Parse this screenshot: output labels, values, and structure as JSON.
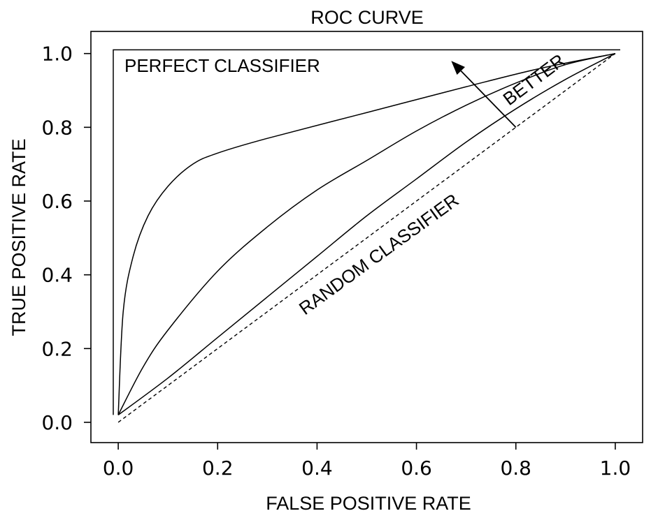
{
  "chart_data": {
    "type": "line",
    "title": "ROC CURVE",
    "xlabel": "FALSE POSITIVE RATE",
    "ylabel": "TRUE POSITIVE RATE",
    "xlim": [
      -0.055,
      1.055
    ],
    "ylim": [
      -0.055,
      1.06
    ],
    "x_ticks": [
      "0.0",
      "0.2",
      "0.4",
      "0.6",
      "0.8",
      "1.0"
    ],
    "y_ticks": [
      "0.0",
      "0.2",
      "0.4",
      "0.6",
      "0.8",
      "1.0"
    ],
    "grid": false,
    "series": [
      {
        "name": "PERFECT CLASSIFIER",
        "style": "solid",
        "x": [
          -0.01,
          -0.01,
          1.01
        ],
        "y": [
          0.02,
          1.01,
          1.01
        ]
      },
      {
        "style": "solid",
        "x": [
          0.0,
          0.01,
          0.03,
          0.06,
          0.1,
          0.15,
          0.2,
          0.3,
          0.5,
          0.7,
          0.85,
          1.0
        ],
        "y": [
          0.02,
          0.3,
          0.45,
          0.56,
          0.64,
          0.7,
          0.73,
          0.77,
          0.84,
          0.91,
          0.96,
          1.0
        ]
      },
      {
        "style": "solid",
        "x": [
          0.0,
          0.05,
          0.1,
          0.2,
          0.3,
          0.4,
          0.5,
          0.6,
          0.7,
          0.8,
          0.9,
          1.0
        ],
        "y": [
          0.02,
          0.15,
          0.25,
          0.41,
          0.53,
          0.63,
          0.71,
          0.79,
          0.86,
          0.92,
          0.97,
          1.0
        ]
      },
      {
        "style": "solid",
        "x": [
          0.0,
          0.1,
          0.2,
          0.3,
          0.4,
          0.5,
          0.6,
          0.7,
          0.8,
          0.9,
          1.0
        ],
        "y": [
          0.02,
          0.12,
          0.23,
          0.34,
          0.45,
          0.56,
          0.66,
          0.76,
          0.85,
          0.93,
          1.0
        ]
      },
      {
        "name": "RANDOM CLASSIFIER",
        "style": "dashed",
        "x": [
          0.0,
          1.0
        ],
        "y": [
          0.0,
          1.0
        ]
      }
    ],
    "annotations": [
      {
        "text": "PERFECT CLASSIFIER"
      },
      {
        "text": "RANDOM CLASSIFIER"
      },
      {
        "text": "BETTER",
        "arrow": {
          "from": [
            0.8,
            0.8
          ],
          "to": [
            0.67,
            0.98
          ]
        }
      }
    ]
  }
}
